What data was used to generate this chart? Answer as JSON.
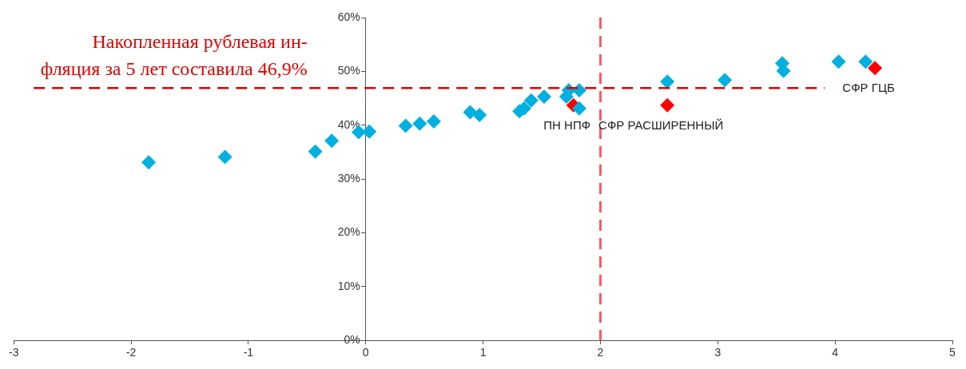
{
  "chart_data": {
    "type": "scatter",
    "xlim": [
      -3,
      5
    ],
    "xticks": [
      -3,
      -2,
      -1,
      0,
      1,
      2,
      3,
      4,
      5
    ],
    "ylim": [
      0,
      60
    ],
    "yticks": [
      {
        "value": 0,
        "label": "0%"
      },
      {
        "value": 10,
        "label": "10%"
      },
      {
        "value": 20,
        "label": "20%"
      },
      {
        "value": 30,
        "label": "30%"
      },
      {
        "value": 40,
        "label": "40%"
      },
      {
        "value": 50,
        "label": "50%"
      },
      {
        "value": 60,
        "label": "60%"
      }
    ],
    "marker": "diamond",
    "grid": false,
    "legend": false,
    "series": [
      {
        "color": "#00b0e0",
        "x": [
          -1.85,
          -1.2,
          -0.43,
          -0.29,
          -0.06,
          0.03,
          0.34,
          0.46,
          0.58,
          0.89,
          0.97,
          1.31,
          1.35,
          1.41,
          1.52,
          1.71,
          1.73,
          1.82,
          1.82,
          2.57,
          3.06,
          3.55,
          3.56,
          4.03,
          4.26
        ],
        "values": [
          33.1,
          34.1,
          35.1,
          37.1,
          38.7,
          38.8,
          39.9,
          40.3,
          40.7,
          42.4,
          41.9,
          42.6,
          43.1,
          44.6,
          45.3,
          45.3,
          46.5,
          46.5,
          43.1,
          48.1,
          48.4,
          51.5,
          50.1,
          51.8,
          51.8
        ]
      },
      {
        "color": "#ff0000",
        "x": [
          1.77,
          2.57,
          4.34
        ],
        "values": [
          43.7,
          43.7,
          50.6
        ]
      }
    ],
    "ref_lines": [
      {
        "axis": "y",
        "value": 46.9,
        "color": "#e00000",
        "line_style": "dashed"
      },
      {
        "axis": "x",
        "value": 2,
        "color": "#f06060",
        "line_style": "dashed"
      }
    ],
    "annotations": [
      "Накопленная рублевая ин-\nфляция за 5 лет составила 46,9%",
      {
        "text": "ПН НПФ",
        "x": 1.77,
        "y": 43.7
      },
      {
        "text": "СФР РАСШИРЕННЫЙ",
        "x": 2.57,
        "y": 43.7
      },
      {
        "text": "СФР ГЦБ",
        "x": 4.34,
        "y": 50.6
      }
    ]
  }
}
